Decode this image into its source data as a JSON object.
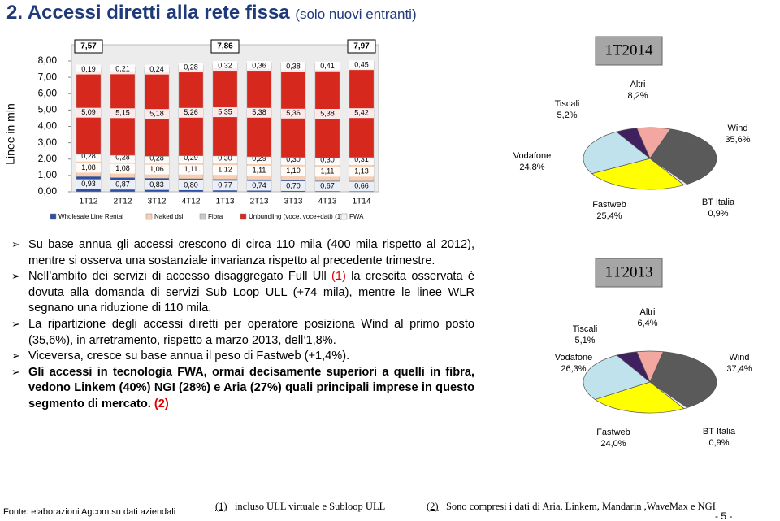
{
  "title": "2. Accessi diretti alla rete fissa",
  "subtitle": "(solo nuovi entranti)",
  "chart_data": [
    {
      "type": "bar",
      "y_label": "Linee in mln",
      "categories": [
        "1T12",
        "2T12",
        "3T12",
        "4T12",
        "1T13",
        "2T13",
        "3T13",
        "4T13",
        "1T14"
      ],
      "series": [
        {
          "name": "Wholesale Line Rental",
          "color": "#2e4fa3",
          "values": [
            0.93,
            0.87,
            0.83,
            0.8,
            0.77,
            0.74,
            0.7,
            0.67,
            0.66
          ],
          "value_labels": [
            "0,93",
            "0,87",
            "0,83",
            "0,80",
            "0,77",
            "0,74",
            "0,70",
            "0,67",
            "0,66"
          ]
        },
        {
          "name": "Naked dsl",
          "color": "#f9cfb4",
          "values": [
            1.08,
            1.08,
            1.06,
            1.11,
            1.12,
            1.11,
            1.1,
            1.11,
            1.13
          ],
          "value_labels": [
            "1,08",
            "1,08",
            "1,06",
            "1,11",
            "1,12",
            "1,11",
            "1,10",
            "1,11",
            "1,13"
          ]
        },
        {
          "name": "Fibra",
          "color": "#c9c9c9",
          "values": [
            0.28,
            0.28,
            0.28,
            0.29,
            0.3,
            0.29,
            0.3,
            0.3,
            0.31
          ],
          "value_labels": [
            "0,28",
            "0,28",
            "0,28",
            "0,29",
            "0,30",
            "0,29",
            "0,30",
            "0,30",
            "0,31"
          ]
        },
        {
          "name": "Unbundling (voce, voce+dati) (1)",
          "color": "#d7281e",
          "values": [
            5.09,
            5.15,
            5.18,
            5.26,
            5.35,
            5.38,
            5.36,
            5.38,
            5.42
          ],
          "value_labels": [
            "5,09",
            "5,15",
            "5,18",
            "5,26",
            "5,35",
            "5,38",
            "5,36",
            "5,38",
            "5,42"
          ]
        },
        {
          "name": "FWA",
          "color": "#f4f4f4",
          "values": [
            0.19,
            0.21,
            0.24,
            0.28,
            0.32,
            0.36,
            0.38,
            0.41,
            0.45
          ],
          "value_labels": [
            "0,19",
            "0,21",
            "0,24",
            "0,28",
            "0,32",
            "0,36",
            "0,38",
            "0,41",
            "0,45"
          ]
        }
      ],
      "totals": {
        "values": [
          7.57,
          null,
          null,
          null,
          7.86,
          null,
          null,
          null,
          7.97
        ],
        "value_labels": [
          "7,57",
          null,
          null,
          null,
          "7,86",
          null,
          null,
          null,
          "7,97"
        ]
      },
      "ylim": [
        0,
        8
      ],
      "yticks": [
        {
          "value": 0,
          "label": "0,00"
        },
        {
          "value": 1,
          "label": "1,00"
        },
        {
          "value": 2,
          "label": "2,00"
        },
        {
          "value": 3,
          "label": "3,00"
        },
        {
          "value": 4,
          "label": "4,00"
        },
        {
          "value": 5,
          "label": "5,00"
        },
        {
          "value": 6,
          "label": "6,00"
        },
        {
          "value": 7,
          "label": "7,00"
        },
        {
          "value": 8,
          "label": "8,00"
        }
      ],
      "legend": "bottom"
    },
    {
      "type": "pie",
      "title": "1T2014",
      "categories": [
        "Altri",
        "Wind",
        "BT Italia",
        "Fastweb",
        "Vodafone",
        "Tiscali"
      ],
      "values": [
        8.2,
        35.6,
        0.9,
        25.4,
        24.8,
        5.2
      ],
      "value_labels": [
        "8,2%",
        "35,6%",
        "0,9%",
        "25,4%",
        "24,8%",
        "5,2%"
      ],
      "colors": [
        "#f2a7a0",
        "#5a5a5a",
        "#eeeeee",
        "#ffff00",
        "#bfe2ec",
        "#40205f"
      ]
    },
    {
      "type": "pie",
      "title": "1T2013",
      "categories": [
        "Altri",
        "Wind",
        "BT Italia",
        "Fastweb",
        "Vodafone",
        "Tiscali"
      ],
      "values": [
        6.4,
        37.4,
        0.9,
        24.0,
        26.3,
        5.1
      ],
      "value_labels": [
        "6,4%",
        "37,4%",
        "0,9%",
        "24,0%",
        "26,3%",
        "5,1%"
      ],
      "colors": [
        "#f2a7a0",
        "#5a5a5a",
        "#eeeeee",
        "#ffff00",
        "#bfe2ec",
        "#40205f"
      ]
    }
  ],
  "bullets": [
    [
      "Su base annua gli accessi crescono di circa  110 mila (400 mila rispetto al 2012), mentre si osserva una sostanziale invarianza rispetto al precedente trimestre."
    ],
    [
      "Nell’ambito dei servizi di accesso disaggregato Full Ull ",
      "(1)",
      " la crescita osservata è dovuta alla domanda di servizi Sub Loop ULL (+74 mila), mentre le linee WLR segnano una riduzione di 110 mila."
    ],
    [
      "La ripartizione degli accessi diretti per operatore posiziona Wind al primo posto (35,6%), in arretramento, rispetto a marzo 2013, dell’1,8%."
    ],
    [
      "Viceversa, cresce su base annua il peso di Fastweb (+1,4%)."
    ],
    [
      "Gli accessi in tecnologia FWA, ormai decisamente superiori a quelli in fibra, vedono Linkem (40%) NGI (28%) e Aria (27%) quali principali imprese in questo segmento di mercato.",
      "(2)"
    ]
  ],
  "footer": {
    "source": "Fonte: elaborazioni Agcom su dati aziendali",
    "note1_mark": "(1)",
    "note1": "incluso ULL virtuale e Subloop ULL",
    "note2_mark": "(2)",
    "note2": "Sono compresi i dati di Aria, Linkem, Mandarin ,WaveMax e NGI",
    "page": "- 5 -"
  }
}
